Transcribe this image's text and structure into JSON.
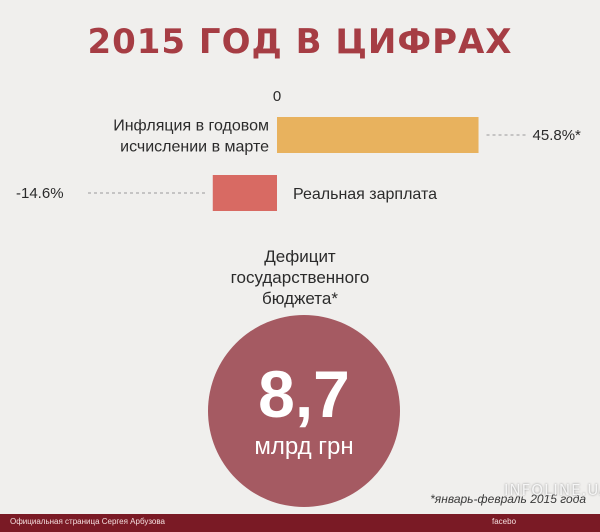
{
  "title": "2015 ГОД В ЦИФРАХ",
  "colors": {
    "title": "#a63d44",
    "inflation_bar": "#e8b25e",
    "salary_bar": "#d86a63",
    "circle": "#a55a62",
    "bottom_bar": "#7a1a25"
  },
  "chart_data": {
    "type": "bar",
    "orientation": "horizontal",
    "zero_label": "0",
    "categories": [
      "Инфляция в годовом исчислении в марте",
      "Реальная зарплата"
    ],
    "category_lines": [
      [
        "Инфляция в годовом",
        "исчислении в марте"
      ],
      [
        "Реальная зарплата"
      ]
    ],
    "values": [
      45.8,
      -14.6
    ],
    "value_labels": [
      "45.8%*",
      "-14.6%"
    ],
    "unit": "%"
  },
  "deficit": {
    "label_lines": [
      "Дефицит",
      "государственного",
      "бюджета*"
    ],
    "value": "8,7",
    "unit": "млрд грн"
  },
  "footnote": "*январь-февраль 2015 года",
  "bottom_bar": {
    "left_text": "Официальная страница Сергея Арбузова",
    "right_text": "facebo"
  },
  "watermark": "INFOLINE.UA"
}
